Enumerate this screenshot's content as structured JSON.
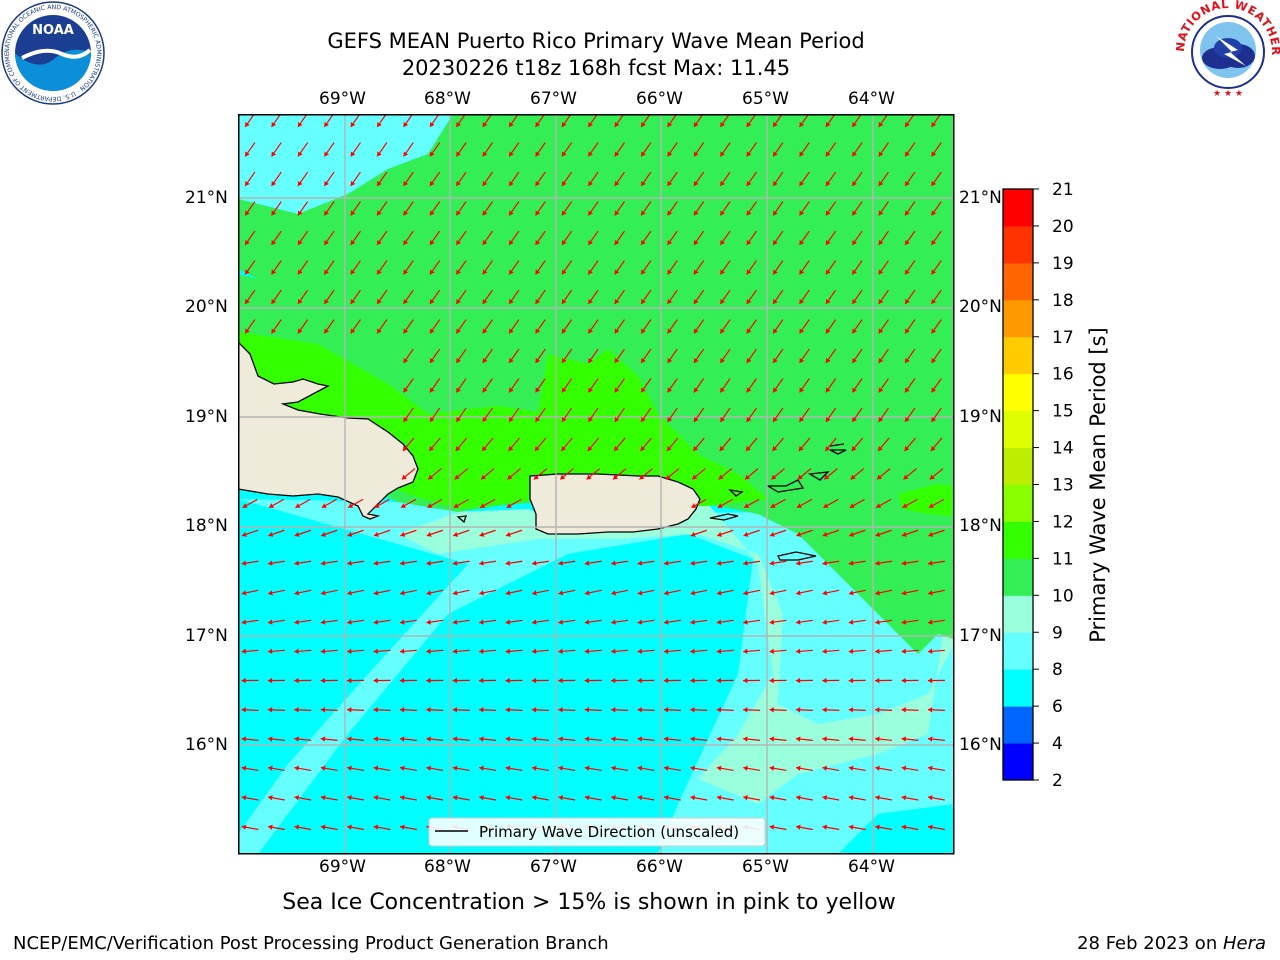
{
  "title": {
    "line1": "GEFS MEAN Puerto Rico Primary Wave Mean Period",
    "line2": "20230226 t18z 168h fcst   Max: 11.45"
  },
  "map": {
    "lon_labels": [
      "69°W",
      "68°W",
      "67°W",
      "66°W",
      "65°W",
      "64°W"
    ],
    "lat_labels": [
      "21°N",
      "20°N",
      "19°N",
      "18°N",
      "17°N",
      "16°N"
    ],
    "legend_label": "Primary Wave Direction (unscaled)",
    "arrow_color": "#ff0000",
    "land_color": "#efebda"
  },
  "colorbar": {
    "label": "Primary Wave Mean Period [s]",
    "ticks": [
      "2",
      "4",
      "6",
      "8",
      "9",
      "10",
      "11",
      "12",
      "13",
      "14",
      "15",
      "16",
      "17",
      "18",
      "19",
      "20",
      "21"
    ],
    "colors": [
      "#0000ff",
      "#0066ff",
      "#00ffff",
      "#66ffff",
      "#99ffdd",
      "#33ee55",
      "#33ff00",
      "#88ff00",
      "#bbee00",
      "#ddff00",
      "#ffff00",
      "#ffcc00",
      "#ff9900",
      "#ff6600",
      "#ff3300",
      "#ff0000"
    ]
  },
  "footer": {
    "sea_ice_note": "Sea Ice Concentration > 15% is shown in pink to yellow",
    "branch": "NCEP/EMC/Verification Post Processing Product Generation Branch",
    "date": "28 Feb 2023 on ",
    "host": "Hera"
  },
  "logos": {
    "noaa": "NOAA",
    "noaa_ring": "NATIONAL OCEANIC AND ATMOSPHERIC ADMINISTRATION · U.S. DEPARTMENT OF COMMERCE ·",
    "nws_ring": "NATIONAL WEATHER SERVICE"
  }
}
